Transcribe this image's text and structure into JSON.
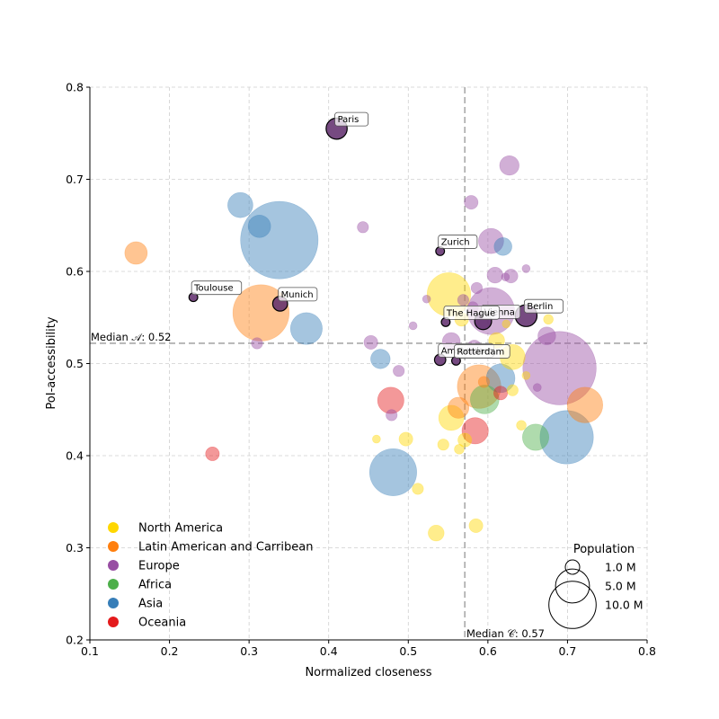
{
  "chart_data": {
    "type": "scatter",
    "xlabel": "Normalized closeness",
    "ylabel": "PoI-accessibility",
    "xlim": [
      0.1,
      0.8
    ],
    "ylim": [
      0.2,
      0.8
    ],
    "xticks": [
      "0.1",
      "0.2",
      "0.3",
      "0.4",
      "0.5",
      "0.6",
      "0.7",
      "0.8"
    ],
    "yticks": [
      "0.2",
      "0.3",
      "0.4",
      "0.5",
      "0.6",
      "0.7",
      "0.8"
    ],
    "grid": true,
    "median_x": 0.571,
    "median_y": 0.522,
    "median_x_label": "Median 𝒞: 0.57",
    "median_y_label": "Median 𝒜: 0.52",
    "legend_placement": "bottom-left",
    "regions": [
      {
        "name": "North America",
        "color": "#ffd700"
      },
      {
        "name": "Latin American and Carribean",
        "color": "#ff7f0e"
      },
      {
        "name": "Europe",
        "color": "#984ea3"
      },
      {
        "name": "Africa",
        "color": "#4daf4a"
      },
      {
        "name": "Asia",
        "color": "#377eb8"
      },
      {
        "name": "Oceania",
        "color": "#e41a1c"
      }
    ],
    "size_legend": {
      "title": "Population",
      "entries": [
        {
          "label": "1.0 M",
          "pop": 1.0
        },
        {
          "label": "5.0 M",
          "pop": 5.0
        },
        {
          "label": "10.0 M",
          "pop": 10.0
        }
      ]
    },
    "points": [
      {
        "x": 0.338,
        "y": 0.634,
        "pop": 9.5,
        "region": "Asia"
      },
      {
        "x": 0.69,
        "y": 0.495,
        "pop": 8.5,
        "region": "Europe"
      },
      {
        "x": 0.699,
        "y": 0.42,
        "pop": 4.5,
        "region": "Asia"
      },
      {
        "x": 0.315,
        "y": 0.555,
        "pop": 5.0,
        "region": "Latin American and Carribean"
      },
      {
        "x": 0.481,
        "y": 0.382,
        "pop": 3.5,
        "region": "Asia"
      },
      {
        "x": 0.604,
        "y": 0.557,
        "pop": 3.5,
        "region": "Europe"
      },
      {
        "x": 0.551,
        "y": 0.575,
        "pop": 3.0,
        "region": "North America"
      },
      {
        "x": 0.589,
        "y": 0.475,
        "pop": 3.0,
        "region": "Latin American and Carribean"
      },
      {
        "x": 0.722,
        "y": 0.455,
        "pop": 2.0,
        "region": "Latin American and Carribean"
      },
      {
        "x": 0.372,
        "y": 0.538,
        "pop": 1.6,
        "region": "Asia"
      },
      {
        "x": 0.616,
        "y": 0.484,
        "pop": 1.3,
        "region": "Asia"
      },
      {
        "x": 0.631,
        "y": 0.507,
        "pop": 1.0,
        "region": "North America"
      },
      {
        "x": 0.554,
        "y": 0.441,
        "pop": 1.0,
        "region": "North America"
      },
      {
        "x": 0.596,
        "y": 0.461,
        "pop": 1.3,
        "region": "Africa"
      },
      {
        "x": 0.584,
        "y": 0.427,
        "pop": 1.1,
        "region": "Oceania"
      },
      {
        "x": 0.478,
        "y": 0.46,
        "pop": 1.1,
        "region": "Oceania"
      },
      {
        "x": 0.289,
        "y": 0.672,
        "pop": 1.0,
        "region": "Asia"
      },
      {
        "x": 0.604,
        "y": 0.633,
        "pop": 1.0,
        "region": "Europe"
      },
      {
        "x": 0.66,
        "y": 0.42,
        "pop": 1.1,
        "region": "Africa"
      },
      {
        "x": 0.158,
        "y": 0.62,
        "pop": 0.8,
        "region": "Latin American and Carribean"
      },
      {
        "x": 0.313,
        "y": 0.649,
        "pop": 0.8,
        "region": "Asia"
      },
      {
        "x": 0.563,
        "y": 0.452,
        "pop": 0.7,
        "region": "Latin American and Carribean"
      },
      {
        "x": 0.627,
        "y": 0.715,
        "pop": 0.6,
        "region": "Europe"
      },
      {
        "x": 0.465,
        "y": 0.505,
        "pop": 0.6,
        "region": "Asia"
      },
      {
        "x": 0.619,
        "y": 0.627,
        "pop": 0.5,
        "region": "Asia"
      },
      {
        "x": 0.674,
        "y": 0.53,
        "pop": 0.5,
        "region": "Europe"
      },
      {
        "x": 0.609,
        "y": 0.596,
        "pop": 0.4,
        "region": "Europe"
      },
      {
        "x": 0.535,
        "y": 0.316,
        "pop": 0.4,
        "region": "North America"
      },
      {
        "x": 0.554,
        "y": 0.524,
        "pop": 0.5,
        "region": "Europe"
      },
      {
        "x": 0.611,
        "y": 0.525,
        "pop": 0.4,
        "region": "North America"
      },
      {
        "x": 0.497,
        "y": 0.418,
        "pop": 0.3,
        "region": "North America"
      },
      {
        "x": 0.629,
        "y": 0.595,
        "pop": 0.3,
        "region": "Europe"
      },
      {
        "x": 0.616,
        "y": 0.468,
        "pop": 0.3,
        "region": "Oceania"
      },
      {
        "x": 0.254,
        "y": 0.402,
        "pop": 0.3,
        "region": "Oceania"
      },
      {
        "x": 0.585,
        "y": 0.324,
        "pop": 0.3,
        "region": "North America"
      },
      {
        "x": 0.453,
        "y": 0.523,
        "pop": 0.3,
        "region": "Europe"
      },
      {
        "x": 0.579,
        "y": 0.675,
        "pop": 0.3,
        "region": "Europe"
      },
      {
        "x": 0.583,
        "y": 0.518,
        "pop": 0.3,
        "region": "Europe"
      },
      {
        "x": 0.571,
        "y": 0.417,
        "pop": 0.3,
        "region": "North America"
      },
      {
        "x": 0.567,
        "y": 0.548,
        "pop": 0.3,
        "region": "North America"
      },
      {
        "x": 0.488,
        "y": 0.492,
        "pop": 0.2,
        "region": "Europe"
      },
      {
        "x": 0.479,
        "y": 0.444,
        "pop": 0.2,
        "region": "Europe"
      },
      {
        "x": 0.544,
        "y": 0.412,
        "pop": 0.2,
        "region": "North America"
      },
      {
        "x": 0.512,
        "y": 0.364,
        "pop": 0.2,
        "region": "North America"
      },
      {
        "x": 0.631,
        "y": 0.471,
        "pop": 0.2,
        "region": "North America"
      },
      {
        "x": 0.31,
        "y": 0.522,
        "pop": 0.2,
        "region": "Europe"
      },
      {
        "x": 0.443,
        "y": 0.648,
        "pop": 0.2,
        "region": "Europe"
      },
      {
        "x": 0.586,
        "y": 0.582,
        "pop": 0.2,
        "region": "Europe"
      },
      {
        "x": 0.569,
        "y": 0.569,
        "pop": 0.2,
        "region": "Europe"
      },
      {
        "x": 0.581,
        "y": 0.561,
        "pop": 0.2,
        "region": "Europe"
      },
      {
        "x": 0.564,
        "y": 0.407,
        "pop": 0.15,
        "region": "North America"
      },
      {
        "x": 0.642,
        "y": 0.433,
        "pop": 0.15,
        "region": "North America"
      },
      {
        "x": 0.676,
        "y": 0.548,
        "pop": 0.15,
        "region": "North America"
      },
      {
        "x": 0.648,
        "y": 0.603,
        "pop": 0.1,
        "region": "Europe"
      },
      {
        "x": 0.622,
        "y": 0.594,
        "pop": 0.1,
        "region": "Europe"
      },
      {
        "x": 0.662,
        "y": 0.474,
        "pop": 0.1,
        "region": "Europe"
      },
      {
        "x": 0.506,
        "y": 0.541,
        "pop": 0.08,
        "region": "Europe"
      },
      {
        "x": 0.523,
        "y": 0.57,
        "pop": 0.08,
        "region": "Europe"
      },
      {
        "x": 0.46,
        "y": 0.418,
        "pop": 0.08,
        "region": "North America"
      },
      {
        "x": 0.648,
        "y": 0.487,
        "pop": 0.08,
        "region": "North America"
      },
      {
        "x": 0.623,
        "y": 0.543,
        "pop": 0.08,
        "region": "North America"
      },
      {
        "x": 0.595,
        "y": 0.48,
        "pop": 0.2,
        "region": "Latin American and Carribean"
      }
    ],
    "highlighted": [
      {
        "label": "Paris",
        "x": 0.41,
        "y": 0.755,
        "pop": 0.7
      },
      {
        "label": "Zurich",
        "x": 0.54,
        "y": 0.622,
        "pop": 0.12
      },
      {
        "label": "Toulouse",
        "x": 0.23,
        "y": 0.572,
        "pop": 0.12
      },
      {
        "label": "Munich",
        "x": 0.339,
        "y": 0.565,
        "pop": 0.35
      },
      {
        "label": "Berlin",
        "x": 0.648,
        "y": 0.552,
        "pop": 0.75
      },
      {
        "label": "Vienna",
        "x": 0.594,
        "y": 0.546,
        "pop": 0.45
      },
      {
        "label": "The Hague",
        "x": 0.547,
        "y": 0.545,
        "pop": 0.12
      },
      {
        "label": "Amsterdam",
        "x": 0.54,
        "y": 0.504,
        "pop": 0.2
      },
      {
        "label": "Rotterdam",
        "x": 0.56,
        "y": 0.503,
        "pop": 0.12
      }
    ]
  }
}
